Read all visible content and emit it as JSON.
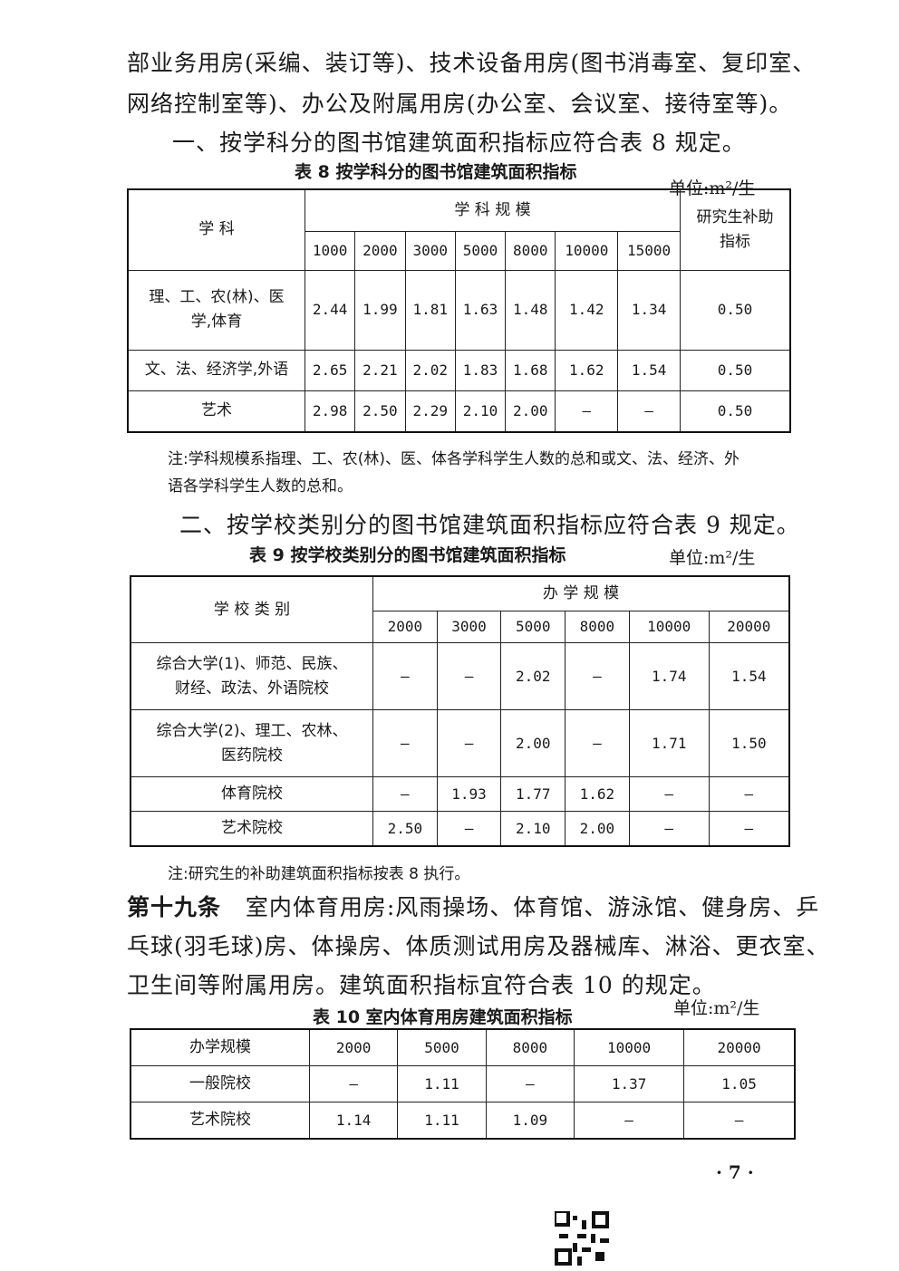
{
  "paragraphs": {
    "p1": "部业务用房(采编、装订等)、技术设备用房(图书消毒室、复印室、",
    "p2": "网络控制室等)、办公及附属用房(办公室、会议室、接待室等)。",
    "p3": "一、按学科分的图书馆建筑面积指标应符合表 8 规定。",
    "p4": "二、按学校类别分的图书馆建筑面积指标应符合表 9 规定。",
    "p5_bold": "第十九条",
    "p5": "室内体育用房:风雨操场、体育馆、游泳馆、健身房、乒",
    "p6": "乓球(羽毛球)房、体操房、体质测试用房及器械库、淋浴、更衣室、",
    "p7": "卫生间等附属用房。建筑面积指标宜符合表 10 的规定。"
  },
  "table8": {
    "caption": "表 8   按学科分的图书馆建筑面积指标",
    "unit": "单位:m²/生",
    "subject_header": "学    科",
    "scale_header": "学 科 规 模",
    "grad_header": "研究生补助指标",
    "scales": [
      "1000",
      "2000",
      "3000",
      "5000",
      "8000",
      "10000",
      "15000"
    ],
    "rows": [
      {
        "label": "理、工、农(林)、医学,体育",
        "values": [
          "2.44",
          "1.99",
          "1.81",
          "1.63",
          "1.48",
          "1.42",
          "1.34"
        ],
        "grad": "0.50"
      },
      {
        "label": "文、法、经济学,外语",
        "values": [
          "2.65",
          "2.21",
          "2.02",
          "1.83",
          "1.68",
          "1.62",
          "1.54"
        ],
        "grad": "0.50"
      },
      {
        "label": "艺术",
        "values": [
          "2.98",
          "2.50",
          "2.29",
          "2.10",
          "2.00",
          "—",
          "—"
        ],
        "grad": "0.50"
      }
    ],
    "note1": "注:学科规模系指理、工、农(林)、医、体各学科学生人数的总和或文、法、经济、外",
    "note2": "语各学科学生人数的总和。"
  },
  "table9": {
    "caption": "表 9   按学校类别分的图书馆建筑面积指标",
    "unit": "单位:m²/生",
    "type_header": "学 校 类 别",
    "scale_header": "办 学 规 模",
    "scales": [
      "2000",
      "3000",
      "5000",
      "8000",
      "10000",
      "20000"
    ],
    "rows": [
      {
        "label": "综合大学(1)、师范、民族、财经、政法、外语院校",
        "values": [
          "—",
          "—",
          "2.02",
          "—",
          "1.74",
          "1.54"
        ]
      },
      {
        "label": "综合大学(2)、理工、农林、医药院校",
        "values": [
          "—",
          "—",
          "2.00",
          "—",
          "1.71",
          "1.50"
        ]
      },
      {
        "label": "体育院校",
        "values": [
          "—",
          "1.93",
          "1.77",
          "1.62",
          "—",
          "—"
        ]
      },
      {
        "label": "艺术院校",
        "values": [
          "2.50",
          "—",
          "2.10",
          "2.00",
          "—",
          "—"
        ]
      }
    ],
    "note": "注:研究生的补助建筑面积指标按表 8 执行。"
  },
  "table10": {
    "caption": "表 10   室内体育用房建筑面积指标",
    "unit": "单位:m²/生",
    "header_label": "办学规模",
    "scales": [
      "2000",
      "5000",
      "8000",
      "10000",
      "20000"
    ],
    "rows": [
      {
        "label": "一般院校",
        "values": [
          "—",
          "1.11",
          "—",
          "1.37",
          "1.05"
        ]
      },
      {
        "label": "艺术院校",
        "values": [
          "1.14",
          "1.11",
          "1.09",
          "—",
          "—"
        ]
      }
    ]
  },
  "page_number": "· 7 ·"
}
